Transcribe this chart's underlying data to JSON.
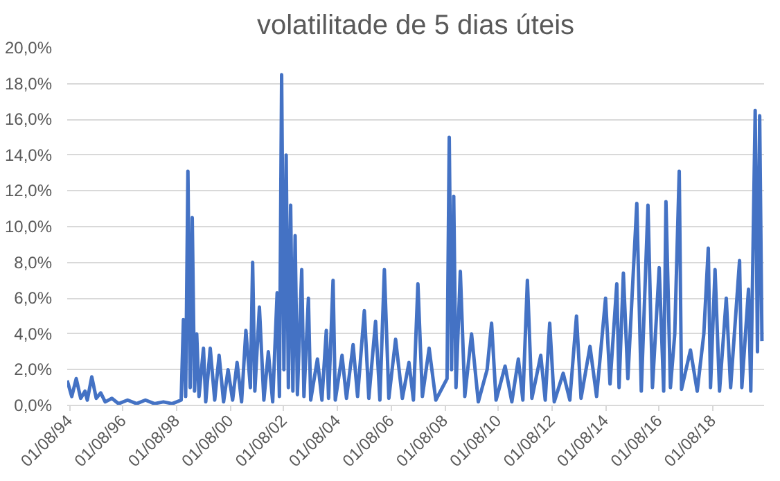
{
  "chart_data": {
    "type": "line",
    "title": "volatilitade de 5 dias úteis",
    "x": [
      "1994-07",
      "1994-09",
      "1994-11",
      "1995-01",
      "1995-03",
      "1995-04",
      "1995-06",
      "1995-08",
      "1995-10",
      "1995-12",
      "1996-03",
      "1996-06",
      "1996-10",
      "1997-02",
      "1997-06",
      "1997-10",
      "1998-02",
      "1998-06",
      "1998-10",
      "1998-11",
      "1998-12",
      "1999-01",
      "1999-02",
      "1999-03",
      "1999-04",
      "1999-05",
      "1999-06",
      "1999-08",
      "1999-09",
      "1999-11",
      "2000-01",
      "2000-03",
      "2000-05",
      "2000-07",
      "2000-09",
      "2000-11",
      "2001-01",
      "2001-03",
      "2001-05",
      "2001-06",
      "2001-07",
      "2001-09",
      "2001-11",
      "2002-01",
      "2002-03",
      "2002-05",
      "2002-06",
      "2002-07",
      "2002-08",
      "2002-09",
      "2002-10",
      "2002-11",
      "2002-12",
      "2003-01",
      "2003-02",
      "2003-04",
      "2003-05",
      "2003-07",
      "2003-08",
      "2003-11",
      "2004-01",
      "2004-03",
      "2004-04",
      "2004-06",
      "2004-07",
      "2004-10",
      "2004-12",
      "2005-03",
      "2005-05",
      "2005-08",
      "2005-10",
      "2006-01",
      "2006-03",
      "2006-05",
      "2006-07",
      "2006-10",
      "2007-01",
      "2007-04",
      "2007-06",
      "2007-08",
      "2007-10",
      "2008-01",
      "2008-04",
      "2008-09",
      "2008-10",
      "2008-11",
      "2008-12",
      "2009-01",
      "2009-03",
      "2009-05",
      "2009-08",
      "2009-11",
      "2010-03",
      "2010-05",
      "2010-07",
      "2010-11",
      "2011-02",
      "2011-05",
      "2011-07",
      "2011-09",
      "2011-11",
      "2012-03",
      "2012-05",
      "2012-07",
      "2012-09",
      "2013-01",
      "2013-04",
      "2013-07",
      "2013-09",
      "2014-01",
      "2014-04",
      "2014-08",
      "2014-10",
      "2015-01",
      "2015-02",
      "2015-04",
      "2015-06",
      "2015-10",
      "2015-12",
      "2016-03",
      "2016-05",
      "2016-08",
      "2016-10",
      "2016-11",
      "2017-01",
      "2017-03",
      "2017-05",
      "2017-06",
      "2017-10",
      "2018-01",
      "2018-04",
      "2018-06",
      "2018-07",
      "2018-09",
      "2018-11",
      "2019-02",
      "2019-04",
      "2019-08",
      "2019-09",
      "2019-12",
      "2020-01",
      "2020-03",
      "2020-04",
      "2020-05",
      "2020-06"
    ],
    "series": [
      {
        "color": "#4472c4",
        "values": [
          1.4,
          0.5,
          1.5,
          0.4,
          0.8,
          0.3,
          1.6,
          0.4,
          0.7,
          0.2,
          0.4,
          0.1,
          0.3,
          0.1,
          0.3,
          0.1,
          0.2,
          0.1,
          0.3,
          4.8,
          0.5,
          13.1,
          1.0,
          10.5,
          0.8,
          4.0,
          0.5,
          3.2,
          0.2,
          3.2,
          0.3,
          2.8,
          0.2,
          2.0,
          0.3,
          2.4,
          0.2,
          4.2,
          1.0,
          8.0,
          0.8,
          5.5,
          0.3,
          3.0,
          0.2,
          6.3,
          0.5,
          18.5,
          2.0,
          14.0,
          1.0,
          11.2,
          0.8,
          9.5,
          0.6,
          7.6,
          0.5,
          6.0,
          0.3,
          2.6,
          0.3,
          4.2,
          0.4,
          7.0,
          0.3,
          2.8,
          0.4,
          3.4,
          0.5,
          5.3,
          0.4,
          4.7,
          0.3,
          7.6,
          0.4,
          3.7,
          0.4,
          2.4,
          0.3,
          6.8,
          0.5,
          3.2,
          0.3,
          1.5,
          15.0,
          2.0,
          11.7,
          1.0,
          7.5,
          0.5,
          4.0,
          0.2,
          2.0,
          4.6,
          0.3,
          2.2,
          0.2,
          2.6,
          0.3,
          7.0,
          0.4,
          2.8,
          0.3,
          4.6,
          0.2,
          1.8,
          0.3,
          5.0,
          0.4,
          3.3,
          0.5,
          6.0,
          1.2,
          6.8,
          1.0,
          7.4,
          1.5,
          11.3,
          0.8,
          11.2,
          1.0,
          7.7,
          0.8,
          11.4,
          1.0,
          4.0,
          13.1,
          0.9,
          3.1,
          0.8,
          4.0,
          8.8,
          1.0,
          7.6,
          0.8,
          6.0,
          1.0,
          8.1,
          1.0,
          6.5,
          0.8,
          16.5,
          3.0,
          16.2,
          3.6
        ]
      }
    ],
    "xlim": [
      "1994-07-01",
      "2020-06-30"
    ],
    "xticks": [
      {
        "value": "1994-08-01",
        "label": "01/08/94"
      },
      {
        "value": "1996-08-01",
        "label": "01/08/96"
      },
      {
        "value": "1998-08-01",
        "label": "01/08/98"
      },
      {
        "value": "2000-08-01",
        "label": "01/08/00"
      },
      {
        "value": "2002-08-01",
        "label": "01/08/02"
      },
      {
        "value": "2004-08-01",
        "label": "01/08/04"
      },
      {
        "value": "2006-08-01",
        "label": "01/08/06"
      },
      {
        "value": "2008-08-01",
        "label": "01/08/08"
      },
      {
        "value": "2010-08-01",
        "label": "01/08/10"
      },
      {
        "value": "2012-08-01",
        "label": "01/08/12"
      },
      {
        "value": "2014-08-01",
        "label": "01/08/14"
      },
      {
        "value": "2016-08-01",
        "label": "01/08/16"
      },
      {
        "value": "2018-08-01",
        "label": "01/08/18"
      }
    ],
    "ylim": [
      0,
      20
    ],
    "yticks": [
      {
        "value": 0,
        "label": "0,0%"
      },
      {
        "value": 2,
        "label": "2,0%"
      },
      {
        "value": 4,
        "label": "4,0%"
      },
      {
        "value": 6,
        "label": "6,0%"
      },
      {
        "value": 8,
        "label": "8,0%"
      },
      {
        "value": 10,
        "label": "10,0%"
      },
      {
        "value": 12,
        "label": "12,0%"
      },
      {
        "value": 14,
        "label": "14,0%"
      },
      {
        "value": 16,
        "label": "16,0%"
      },
      {
        "value": 18,
        "label": "18,0%"
      },
      {
        "value": 20,
        "label": "20,0%"
      }
    ],
    "grid": "y",
    "line_style": "solid"
  }
}
